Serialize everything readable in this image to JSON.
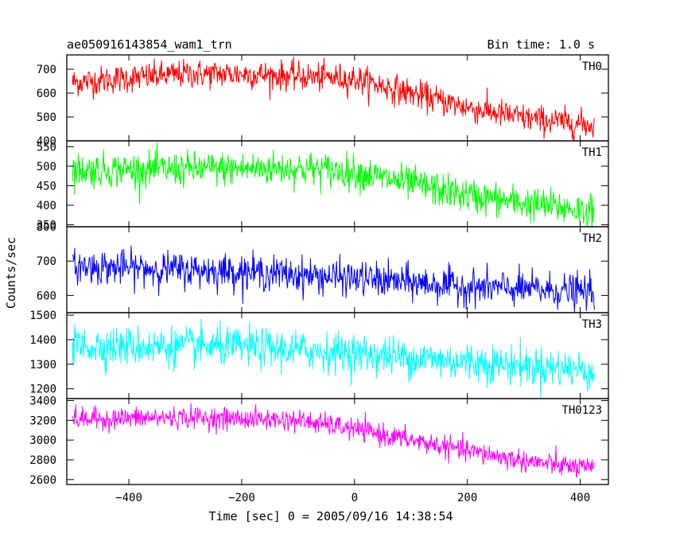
{
  "header": {
    "title": "ae050916143854_wam1_trn",
    "bin_time": "Bin time: 1.0 s"
  },
  "chart_data": {
    "type": "line",
    "xlabel": "Time [sec] 0 = 2005/09/16 14:38:54",
    "ylabel": "Counts/sec",
    "xlim": [
      -510,
      450
    ],
    "xticks": [
      -400,
      -200,
      0,
      200,
      400
    ],
    "x_range": [
      -500,
      425
    ],
    "grid": false,
    "panels": [
      {
        "name": "TH0",
        "color": "#ff0000",
        "ylim": [
          400,
          760
        ],
        "yticks": [
          400,
          500,
          600,
          700
        ],
        "trend": [
          [
            -500,
            645
          ],
          [
            -300,
            680
          ],
          [
            -200,
            680
          ],
          [
            0,
            660
          ],
          [
            100,
            600
          ],
          [
            200,
            540
          ],
          [
            300,
            495
          ],
          [
            425,
            465
          ]
        ],
        "noise_sd": 30
      },
      {
        "name": "TH1",
        "color": "#00ff00",
        "ylim": [
          345,
          565
        ],
        "yticks": [
          350,
          400,
          450,
          500,
          550
        ],
        "trend": [
          [
            -500,
            490
          ],
          [
            -100,
            495
          ],
          [
            0,
            485
          ],
          [
            100,
            455
          ],
          [
            200,
            425
          ],
          [
            300,
            405
          ],
          [
            425,
            385
          ]
        ],
        "noise_sd": 22
      },
      {
        "name": "TH2",
        "color": "#0000ff",
        "ylim": [
          550,
          800
        ],
        "yticks": [
          600,
          700,
          800
        ],
        "trend": [
          [
            -500,
            685
          ],
          [
            -200,
            670
          ],
          [
            0,
            650
          ],
          [
            200,
            625
          ],
          [
            425,
            610
          ]
        ],
        "noise_sd": 25
      },
      {
        "name": "TH3",
        "color": "#00ffff",
        "ylim": [
          1160,
          1510
        ],
        "yticks": [
          1200,
          1300,
          1400,
          1500
        ],
        "trend": [
          [
            -500,
            1375
          ],
          [
            -200,
            1370
          ],
          [
            0,
            1345
          ],
          [
            200,
            1310
          ],
          [
            425,
            1275
          ]
        ],
        "noise_sd": 40
      },
      {
        "name": "TH0123",
        "color": "#ff00ff",
        "ylim": [
          2550,
          3420
        ],
        "yticks": [
          2600,
          2800,
          3000,
          3200,
          3400
        ],
        "trend": [
          [
            -500,
            3210
          ],
          [
            -300,
            3230
          ],
          [
            -100,
            3200
          ],
          [
            0,
            3110
          ],
          [
            100,
            3000
          ],
          [
            200,
            2890
          ],
          [
            300,
            2790
          ],
          [
            425,
            2700
          ]
        ],
        "noise_sd": 55
      }
    ]
  }
}
